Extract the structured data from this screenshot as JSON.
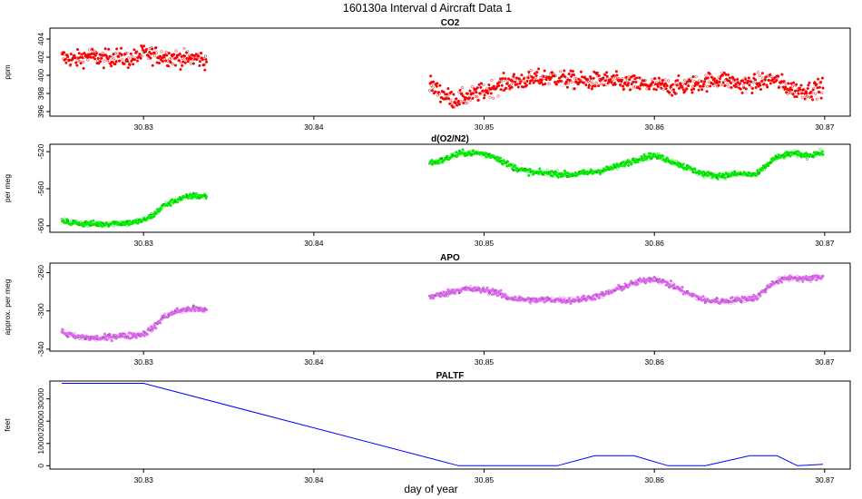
{
  "title": "160130a   Interval d Aircraft Data 1",
  "xlabel": "day of year",
  "chart_data": [
    {
      "type": "scatter",
      "title": "CO2",
      "ylabel": "ppm",
      "xlim": [
        30.8245,
        30.8715
      ],
      "ylim": [
        395.5,
        405.2
      ],
      "xticks": [
        "30.83",
        "30.84",
        "30.85",
        "30.86",
        "30.87"
      ],
      "yticks": [
        "396",
        "398",
        "400",
        "402",
        "404"
      ],
      "color": "#ff0000",
      "series": [
        {
          "x": [
            30.8252,
            30.826,
            30.8268,
            30.8276,
            30.8284,
            30.8292,
            30.83,
            30.8308,
            30.8316,
            30.8324,
            30.8332,
            30.8337,
            30.8468,
            30.8475,
            30.8482,
            30.849,
            30.8498,
            30.8506,
            30.8514,
            30.8522,
            30.853,
            30.854,
            30.855,
            30.856,
            30.857,
            30.858,
            30.859,
            30.86,
            30.861,
            30.862,
            30.863,
            30.864,
            30.865,
            30.866,
            30.867,
            30.868,
            30.869,
            30.8699
          ],
          "y": [
            402.0,
            401.7,
            402.2,
            401.8,
            402.1,
            401.7,
            402.4,
            402.2,
            402.0,
            401.8,
            401.9,
            401.6,
            399.0,
            398.0,
            397.3,
            397.6,
            398.1,
            398.7,
            399.2,
            399.4,
            399.6,
            399.8,
            399.5,
            399.3,
            399.5,
            399.2,
            399.0,
            398.9,
            398.7,
            398.9,
            399.3,
            399.6,
            399.0,
            399.2,
            399.6,
            398.5,
            398.3,
            398.7
          ],
          "spread": 0.9
        }
      ]
    },
    {
      "type": "scatter",
      "title": "d(O2/N2)",
      "ylabel": "per meg",
      "xlim": [
        30.8245,
        30.8715
      ],
      "ylim": [
        -607,
        -512
      ],
      "xticks": [
        "30.83",
        "30.84",
        "30.85",
        "30.86",
        "30.87"
      ],
      "yticks": [
        "-600",
        "-560",
        "-520"
      ],
      "color": "#00ee00",
      "series": [
        {
          "x": [
            30.8252,
            30.826,
            30.8268,
            30.8276,
            30.8284,
            30.8292,
            30.83,
            30.8306,
            30.8312,
            30.832,
            30.8328,
            30.8337,
            30.8468,
            30.8475,
            30.8482,
            30.849,
            30.8498,
            30.8506,
            30.8514,
            30.8522,
            30.853,
            30.854,
            30.855,
            30.856,
            30.857,
            30.858,
            30.859,
            30.86,
            30.861,
            30.862,
            30.863,
            30.864,
            30.865,
            30.866,
            30.867,
            30.868,
            30.869,
            30.8699
          ],
          "y": [
            -595,
            -597,
            -598,
            -598,
            -597,
            -597,
            -594,
            -588,
            -578,
            -572,
            -568,
            -568,
            -532,
            -530,
            -524,
            -521,
            -522,
            -525,
            -534,
            -540,
            -543,
            -543,
            -545,
            -543,
            -540,
            -535,
            -528,
            -524,
            -530,
            -538,
            -545,
            -546,
            -544,
            -545,
            -528,
            -522,
            -524,
            -521
          ],
          "spread": 3
        }
      ]
    },
    {
      "type": "scatter",
      "title": "APO",
      "ylabel": "approx. per meg",
      "xlim": [
        30.8245,
        30.8715
      ],
      "ylim": [
        -342,
        -250
      ],
      "xticks": [
        "30.83",
        "30.84",
        "30.85",
        "30.86",
        "30.87"
      ],
      "yticks": [
        "-340",
        "-300",
        "-260"
      ],
      "color": "#dd66ee",
      "series": [
        {
          "x": [
            30.8252,
            30.826,
            30.8268,
            30.8276,
            30.8284,
            30.8292,
            30.83,
            30.8306,
            30.8312,
            30.832,
            30.8328,
            30.8337,
            30.8468,
            30.8475,
            30.8482,
            30.849,
            30.8498,
            30.8506,
            30.8514,
            30.8522,
            30.853,
            30.854,
            30.855,
            30.856,
            30.857,
            30.858,
            30.859,
            30.86,
            30.861,
            30.862,
            30.863,
            30.864,
            30.865,
            30.866,
            30.867,
            30.868,
            30.869,
            30.8699
          ],
          "y": [
            -322,
            -327,
            -328,
            -329,
            -326,
            -326,
            -324,
            -317,
            -306,
            -300,
            -298,
            -299,
            -285,
            -283,
            -279,
            -277,
            -278,
            -280,
            -286,
            -288,
            -289,
            -288,
            -289,
            -287,
            -283,
            -276,
            -270,
            -266,
            -273,
            -282,
            -289,
            -290,
            -288,
            -286,
            -270,
            -265,
            -267,
            -264
          ],
          "spread": 3
        }
      ]
    },
    {
      "type": "line",
      "title": "PALTF",
      "ylabel": "feet",
      "xlim": [
        30.8245,
        30.8715
      ],
      "ylim": [
        -1500,
        38000
      ],
      "xticks": [
        "30.83",
        "30.84",
        "30.85",
        "30.86",
        "30.87"
      ],
      "yticks": [
        "0",
        "10000",
        "20000",
        "30000"
      ],
      "color": "#0000ff",
      "series": [
        {
          "x": [
            30.8252,
            30.83,
            30.8485,
            30.8527,
            30.8543,
            30.8565,
            30.8588,
            30.8608,
            30.863,
            30.8656,
            30.8672,
            30.8684,
            30.8699
          ],
          "y": [
            37000,
            37000,
            0,
            0,
            0,
            4500,
            4500,
            0,
            0,
            4500,
            4500,
            0,
            600
          ]
        }
      ]
    }
  ]
}
